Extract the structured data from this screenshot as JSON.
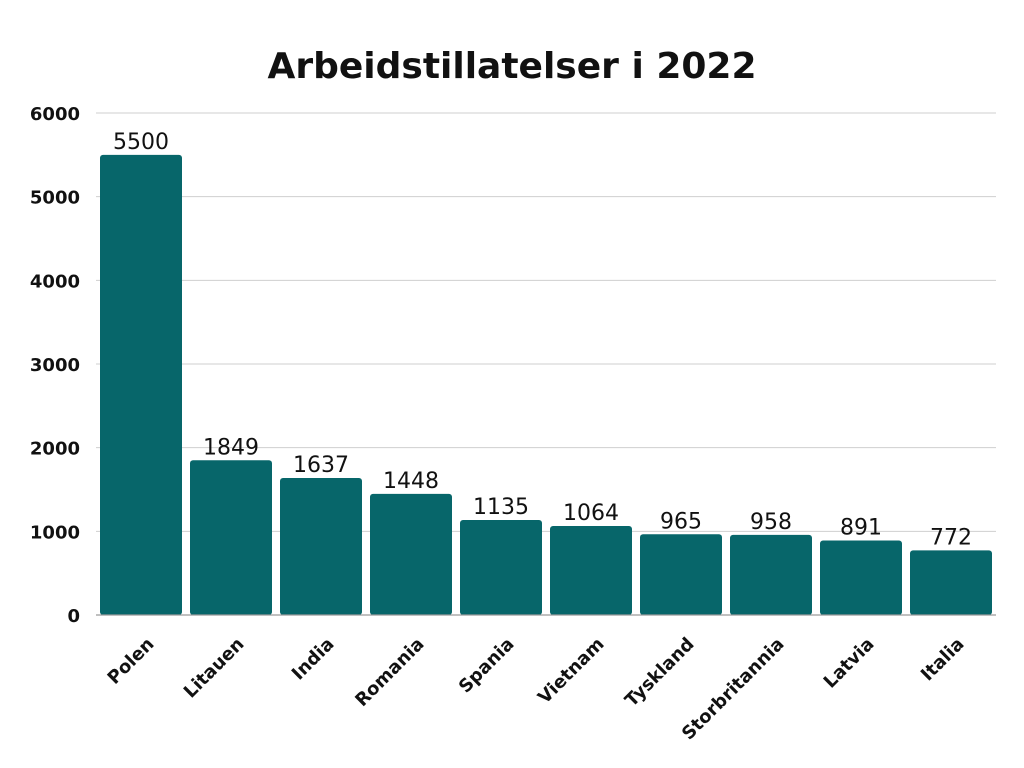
{
  "chart_data": {
    "type": "bar",
    "title": "Arbeidstillatelser i 2022",
    "xlabel": "",
    "ylabel": "",
    "categories": [
      "Polen",
      "Litauen",
      "India",
      "Romania",
      "Spania",
      "Vietnam",
      "Tyskland",
      "Storbritannia",
      "Latvia",
      "Italia"
    ],
    "values": [
      5500,
      1849,
      1637,
      1448,
      1135,
      1064,
      965,
      958,
      891,
      772
    ],
    "ylim": [
      0,
      6000
    ],
    "yticks": [
      0,
      1000,
      2000,
      3000,
      4000,
      5000,
      6000
    ],
    "grid": true,
    "legend": "none",
    "data_labels": true,
    "bar_color": "#07666a"
  }
}
